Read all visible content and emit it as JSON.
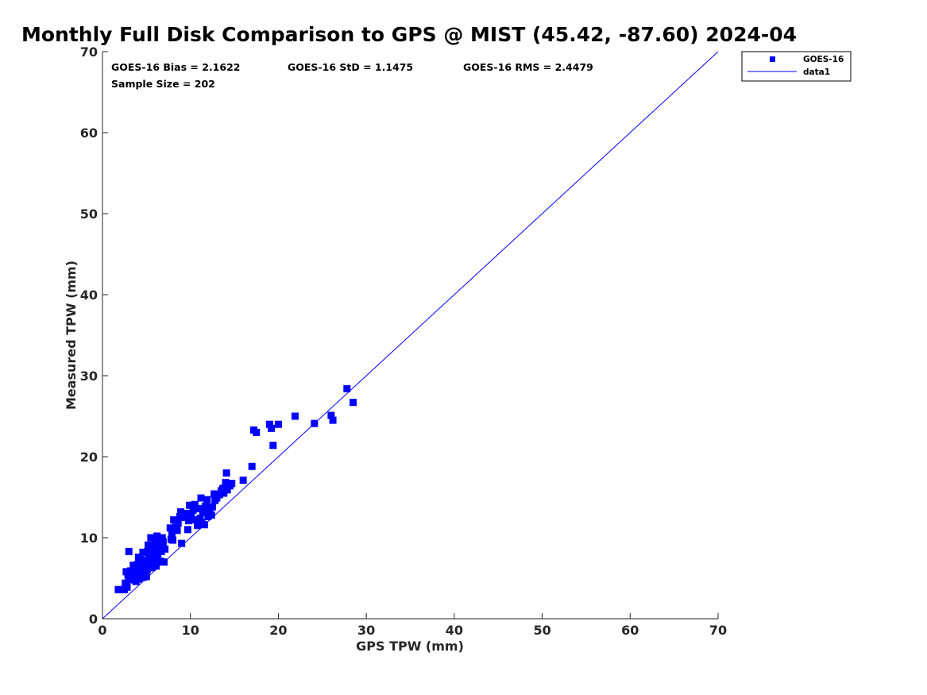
{
  "chart_data": {
    "type": "scatter",
    "title": "Monthly Full Disk Comparison to GPS @ MIST (45.42, -87.60) 2024-04",
    "xlabel": "GPS TPW (mm)",
    "ylabel": "Measured TPW (mm)",
    "xlim": [
      0,
      70
    ],
    "ylim": [
      0,
      70
    ],
    "xticks": [
      0,
      10,
      20,
      30,
      40,
      50,
      60,
      70
    ],
    "yticks": [
      0,
      10,
      20,
      30,
      40,
      50,
      60,
      70
    ],
    "grid": false,
    "legend_position": "top-right (outside)",
    "stats": {
      "bias": "GOES-16 Bias = 2.1622",
      "std": "GOES-16 StD = 1.1475",
      "rms": "GOES-16 RMS = 2.4479",
      "sample": "Sample Size = 202"
    },
    "legend": [
      {
        "label": "GOES-16",
        "marker": "square",
        "color": "#0000ff"
      },
      {
        "label": "data1",
        "marker": "line",
        "color": "#0000ff"
      }
    ],
    "series": [
      {
        "name": "GOES-16",
        "color": "#0000ff",
        "points": [
          [
            1.8,
            3.6
          ],
          [
            2.2,
            3.6
          ],
          [
            2.5,
            3.6
          ],
          [
            2.8,
            3.9
          ],
          [
            2.6,
            4.4
          ],
          [
            3.0,
            4.8
          ],
          [
            2.9,
            5.4
          ],
          [
            2.7,
            5.8
          ],
          [
            3.2,
            5.9
          ],
          [
            3.4,
            5.2
          ],
          [
            3.0,
            8.3
          ],
          [
            3.6,
            5.6
          ],
          [
            3.8,
            4.6
          ],
          [
            3.9,
            6.1
          ],
          [
            3.5,
            6.6
          ],
          [
            4.1,
            4.9
          ],
          [
            4.0,
            5.3
          ],
          [
            4.2,
            5.9
          ],
          [
            4.0,
            6.7
          ],
          [
            4.3,
            7.0
          ],
          [
            4.1,
            7.6
          ],
          [
            4.6,
            5.1
          ],
          [
            4.7,
            5.7
          ],
          [
            4.5,
            6.3
          ],
          [
            4.8,
            6.8
          ],
          [
            4.4,
            7.3
          ],
          [
            4.6,
            8.2
          ],
          [
            5.0,
            5.2
          ],
          [
            5.1,
            6.1
          ],
          [
            5.2,
            6.6
          ],
          [
            5.0,
            7.2
          ],
          [
            5.3,
            7.7
          ],
          [
            5.1,
            8.3
          ],
          [
            5.4,
            8.8
          ],
          [
            5.2,
            9.1
          ],
          [
            5.5,
            10.0
          ],
          [
            5.6,
            6.3
          ],
          [
            5.7,
            7.0
          ],
          [
            5.8,
            7.5
          ],
          [
            5.9,
            8.1
          ],
          [
            5.7,
            9.0
          ],
          [
            6.0,
            9.6
          ],
          [
            6.1,
            6.5
          ],
          [
            6.2,
            7.4
          ],
          [
            6.3,
            8.0
          ],
          [
            6.0,
            8.6
          ],
          [
            6.4,
            9.2
          ],
          [
            6.2,
            10.2
          ],
          [
            6.5,
            9.8
          ],
          [
            6.6,
            7.1
          ],
          [
            6.7,
            8.3
          ],
          [
            6.8,
            8.9
          ],
          [
            6.9,
            9.5
          ],
          [
            7.0,
            7.0
          ],
          [
            7.1,
            8.6
          ],
          [
            6.8,
            10.0
          ],
          [
            7.8,
            9.8
          ],
          [
            7.7,
            11.2
          ],
          [
            7.9,
            10.4
          ],
          [
            8.1,
            12.2
          ],
          [
            8.0,
            9.7
          ],
          [
            8.3,
            11.3
          ],
          [
            8.5,
            10.9
          ],
          [
            8.8,
            12.6
          ],
          [
            8.9,
            13.2
          ],
          [
            8.6,
            11.8
          ],
          [
            9.0,
            9.3
          ],
          [
            9.2,
            12.5
          ],
          [
            9.5,
            13.0
          ],
          [
            9.7,
            11.0
          ],
          [
            9.8,
            12.1
          ],
          [
            9.9,
            14.0
          ],
          [
            10.1,
            12.8
          ],
          [
            10.3,
            13.4
          ],
          [
            10.5,
            14.1
          ],
          [
            10.6,
            12.2
          ],
          [
            10.8,
            11.5
          ],
          [
            10.9,
            13.6
          ],
          [
            11.1,
            12.4
          ],
          [
            11.2,
            14.9
          ],
          [
            11.3,
            11.9
          ],
          [
            11.4,
            13.1
          ],
          [
            11.6,
            11.6
          ],
          [
            11.7,
            13.9
          ],
          [
            11.9,
            14.7
          ],
          [
            12.0,
            12.6
          ],
          [
            12.2,
            13.3
          ],
          [
            12.4,
            12.8
          ],
          [
            12.5,
            13.8
          ],
          [
            12.7,
            15.4
          ],
          [
            12.8,
            14.6
          ],
          [
            13.0,
            14.9
          ],
          [
            13.3,
            15.3
          ],
          [
            13.5,
            15.8
          ],
          [
            13.7,
            16.1
          ],
          [
            13.8,
            15.5
          ],
          [
            14.0,
            16.8
          ],
          [
            14.2,
            15.9
          ],
          [
            14.1,
            18.0
          ],
          [
            14.5,
            16.4
          ],
          [
            14.7,
            16.7
          ],
          [
            16.0,
            17.1
          ],
          [
            17.0,
            18.8
          ],
          [
            17.2,
            23.3
          ],
          [
            17.5,
            23.0
          ],
          [
            19.0,
            24.0
          ],
          [
            19.2,
            23.5
          ],
          [
            19.4,
            21.4
          ],
          [
            20.0,
            24.0
          ],
          [
            21.9,
            25.0
          ],
          [
            24.1,
            24.1
          ],
          [
            26.0,
            25.1
          ],
          [
            26.2,
            24.5
          ],
          [
            27.8,
            28.4
          ],
          [
            28.5,
            26.7
          ]
        ]
      },
      {
        "name": "data1",
        "type": "line",
        "color": "#0000ff",
        "points": [
          [
            0,
            0
          ],
          [
            70,
            70
          ]
        ]
      }
    ]
  }
}
